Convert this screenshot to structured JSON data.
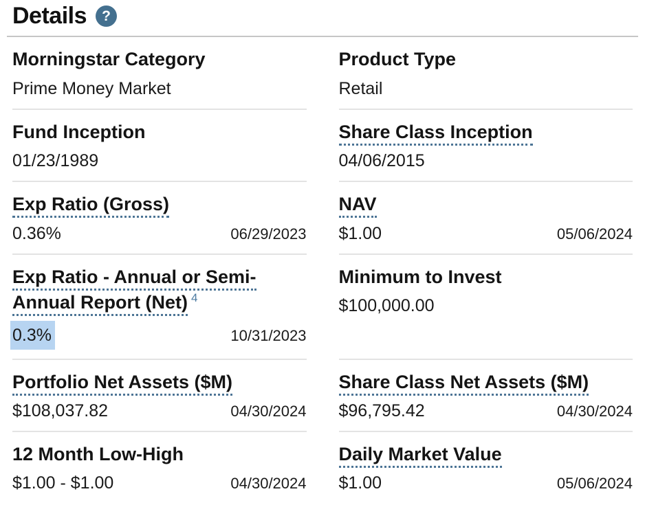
{
  "colors": {
    "accent_blue": "#44708F",
    "dotted_underline_blue": "#4C7495",
    "selection_highlight": "#B7D4F1",
    "footnote_blue": "#4D7BA1",
    "title_divider": "#C6C6C6",
    "row_divider": "#E3E3E3",
    "text": "#161616"
  },
  "header": {
    "title": "Details",
    "help_icon": "?"
  },
  "details": {
    "left": [
      {
        "label": "Morningstar Category",
        "value": "Prime Money Market",
        "date": "",
        "has_tooltip": false
      },
      {
        "label": "Fund Inception",
        "value": "01/23/1989",
        "date": "",
        "has_tooltip": false
      },
      {
        "label": "Exp Ratio (Gross)",
        "value": "0.36%",
        "date": "06/29/2023",
        "has_tooltip": true
      },
      {
        "label": "Exp Ratio - Annual or Semi-Annual Report (Net)",
        "footnote": "4",
        "value": "0.3%",
        "date": "10/31/2023",
        "has_tooltip": true,
        "value_selected": true
      },
      {
        "label": "Portfolio Net Assets ($M)",
        "value": "$108,037.82",
        "date": "04/30/2024",
        "has_tooltip": true
      },
      {
        "label": "12 Month Low-High",
        "value": "$1.00 - $1.00",
        "date": "04/30/2024",
        "has_tooltip": false
      }
    ],
    "right": [
      {
        "label": "Product Type",
        "value": "Retail",
        "date": "",
        "has_tooltip": false
      },
      {
        "label": "Share Class Inception",
        "value": "04/06/2015",
        "date": "",
        "has_tooltip": true
      },
      {
        "label": "NAV",
        "value": "$1.00",
        "date": "05/06/2024",
        "has_tooltip": true
      },
      {
        "label": "Minimum to Invest",
        "value": "$100,000.00",
        "date": "",
        "has_tooltip": false
      },
      {
        "label": "Share Class Net Assets ($M)",
        "value": "$96,795.42",
        "date": "04/30/2024",
        "has_tooltip": true
      },
      {
        "label": "Daily Market Value",
        "value": "$1.00",
        "date": "05/06/2024",
        "has_tooltip": true
      }
    ]
  }
}
